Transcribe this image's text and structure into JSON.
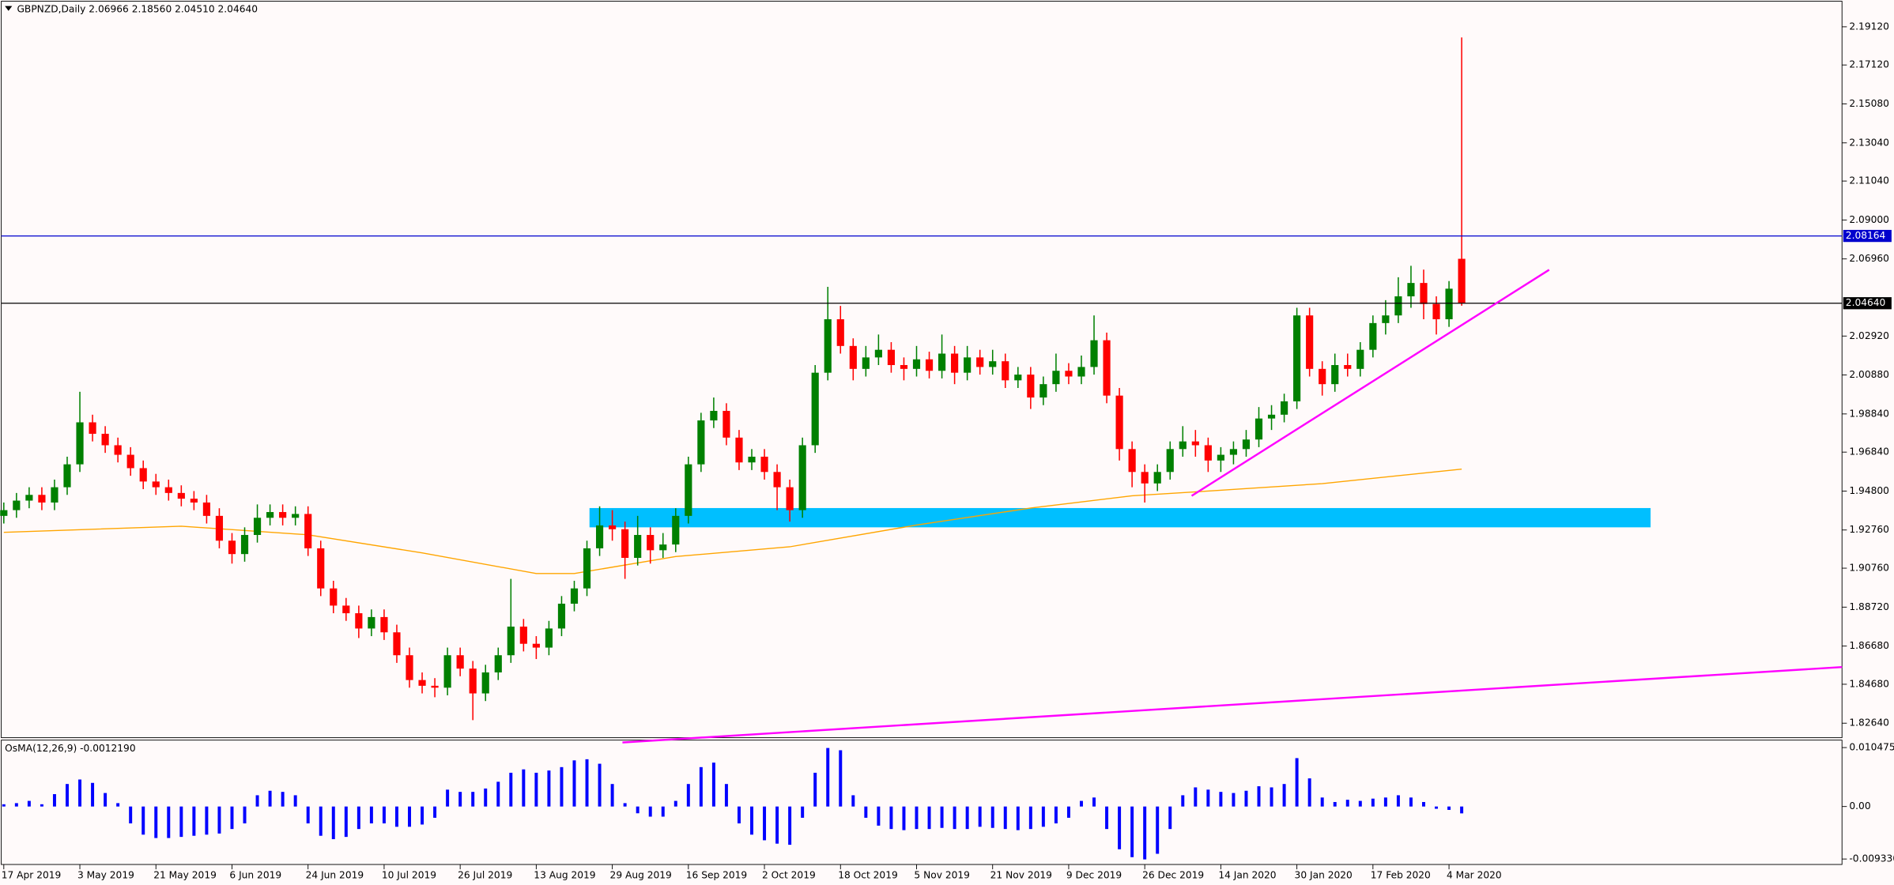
{
  "chart_data": [
    {
      "type": "candlestick",
      "title": "GBPNZD,Daily  2.06966 2.18560 2.04510 2.04640",
      "up_color": "#008000",
      "down_color": "#ff0000",
      "xlim": [
        -0.2,
        145
      ],
      "ylim": [
        1.8188,
        2.2046
      ],
      "xticks": [
        {
          "value": 0,
          "label": "17 Apr 2019"
        },
        {
          "value": 6,
          "label": "3 May 2019"
        },
        {
          "value": 12,
          "label": "21 May 2019"
        },
        {
          "value": 18,
          "label": "6 Jun 2019"
        },
        {
          "value": 24,
          "label": "24 Jun 2019"
        },
        {
          "value": 30,
          "label": "10 Jul 2019"
        },
        {
          "value": 36,
          "label": "26 Jul 2019"
        },
        {
          "value": 42,
          "label": "13 Aug 2019"
        },
        {
          "value": 48,
          "label": "29 Aug 2019"
        },
        {
          "value": 54,
          "label": "16 Sep 2019"
        },
        {
          "value": 60,
          "label": "2 Oct 2019"
        },
        {
          "value": 66,
          "label": "18 Oct 2019"
        },
        {
          "value": 72,
          "label": "5 Nov 2019"
        },
        {
          "value": 78,
          "label": "21 Nov 2019"
        },
        {
          "value": 84,
          "label": "9 Dec 2019"
        },
        {
          "value": 90,
          "label": "26 Dec 2019"
        },
        {
          "value": 96,
          "label": "14 Jan 2020"
        },
        {
          "value": 102,
          "label": "30 Jan 2020"
        },
        {
          "value": 108,
          "label": "17 Feb 2020"
        },
        {
          "value": 114,
          "label": "4 Mar 2020"
        }
      ],
      "yticks": [
        {
          "value": 2.1912,
          "label": "2.19120"
        },
        {
          "value": 2.1712,
          "label": "2.17120"
        },
        {
          "value": 2.1508,
          "label": "2.15080"
        },
        {
          "value": 2.1304,
          "label": "2.13040"
        },
        {
          "value": 2.1104,
          "label": "2.11040"
        },
        {
          "value": 2.09,
          "label": "2.09000"
        },
        {
          "value": 2.0696,
          "label": "2.06960"
        },
        {
          "value": 2.0292,
          "label": "2.02920"
        },
        {
          "value": 2.0088,
          "label": "2.00880"
        },
        {
          "value": 1.9884,
          "label": "1.98840"
        },
        {
          "value": 1.9684,
          "label": "1.96840"
        },
        {
          "value": 1.948,
          "label": "1.94800"
        },
        {
          "value": 1.9276,
          "label": "1.92760"
        },
        {
          "value": 1.9076,
          "label": "1.90760"
        },
        {
          "value": 1.8872,
          "label": "1.88720"
        },
        {
          "value": 1.8668,
          "label": "1.86680"
        },
        {
          "value": 1.8468,
          "label": "1.84680"
        },
        {
          "value": 1.8264,
          "label": "1.82640"
        }
      ],
      "open": [
        1.935,
        1.938,
        1.943,
        1.946,
        1.942,
        1.95,
        1.962,
        1.984,
        1.978,
        1.972,
        1.967,
        1.96,
        1.953,
        1.95,
        1.947,
        1.944,
        1.942,
        1.935,
        1.922,
        1.915,
        1.925,
        1.934,
        1.937,
        1.934,
        1.936,
        1.918,
        1.897,
        1.888,
        1.884,
        1.876,
        1.882,
        1.874,
        1.862,
        1.849,
        1.846,
        1.845,
        1.862,
        1.855,
        1.842,
        1.853,
        1.862,
        1.877,
        1.868,
        1.866,
        1.876,
        1.889,
        1.897,
        1.918,
        1.93,
        1.928,
        1.913,
        1.925,
        1.917,
        1.92,
        1.935,
        1.962,
        1.985,
        1.99,
        1.976,
        1.963,
        1.966,
        1.958,
        1.95,
        1.938,
        1.972,
        2.01,
        2.038,
        2.024,
        2.012,
        2.018,
        2.022,
        2.014,
        2.012,
        2.017,
        2.011,
        2.02,
        2.01,
        2.018,
        2.013,
        2.016,
        2.006,
        2.009,
        1.997,
        2.004,
        2.011,
        2.008,
        2.013,
        2.027,
        1.998,
        1.97,
        1.958,
        1.952,
        1.958,
        1.97,
        1.974,
        1.972,
        1.964,
        1.967,
        1.97,
        1.975,
        1.986,
        1.988,
        1.995,
        2.04,
        2.012,
        2.004,
        2.014,
        2.012,
        2.022,
        2.036,
        2.04,
        2.05,
        2.057,
        2.046,
        2.038,
        2.06966
      ],
      "high": [
        1.942,
        1.947,
        1.95,
        1.95,
        1.954,
        1.966,
        2.0,
        1.988,
        1.982,
        1.976,
        1.971,
        1.964,
        1.957,
        1.954,
        1.951,
        1.948,
        1.946,
        1.939,
        1.926,
        1.929,
        1.941,
        1.941,
        1.941,
        1.94,
        1.94,
        1.922,
        1.901,
        1.892,
        1.888,
        1.886,
        1.886,
        1.878,
        1.866,
        1.853,
        1.85,
        1.866,
        1.866,
        1.859,
        1.857,
        1.866,
        1.902,
        1.881,
        1.872,
        1.88,
        1.893,
        1.901,
        1.922,
        1.94,
        1.938,
        1.932,
        1.935,
        1.929,
        1.926,
        1.939,
        1.966,
        1.989,
        1.997,
        1.994,
        1.98,
        1.97,
        1.97,
        1.962,
        1.954,
        1.976,
        2.014,
        2.055,
        2.045,
        2.028,
        2.024,
        2.03,
        2.026,
        2.018,
        2.024,
        2.021,
        2.03,
        2.024,
        2.024,
        2.022,
        2.022,
        2.02,
        2.013,
        2.013,
        2.008,
        2.02,
        2.015,
        2.019,
        2.04,
        2.031,
        2.002,
        1.974,
        1.962,
        1.962,
        1.974,
        1.982,
        1.98,
        1.976,
        1.971,
        1.974,
        1.98,
        1.992,
        1.993,
        1.999,
        2.044,
        2.044,
        2.016,
        2.02,
        2.02,
        2.026,
        2.04,
        2.048,
        2.06,
        2.066,
        2.064,
        2.05,
        2.058,
        2.1856
      ],
      "low": [
        1.931,
        1.934,
        1.939,
        1.938,
        1.938,
        1.946,
        1.958,
        1.974,
        1.968,
        1.963,
        1.956,
        1.949,
        1.946,
        1.943,
        1.94,
        1.938,
        1.931,
        1.918,
        1.91,
        1.911,
        1.921,
        1.93,
        1.93,
        1.93,
        1.914,
        1.893,
        1.884,
        1.88,
        1.871,
        1.872,
        1.87,
        1.858,
        1.845,
        1.842,
        1.84,
        1.841,
        1.851,
        1.828,
        1.838,
        1.849,
        1.858,
        1.864,
        1.86,
        1.862,
        1.872,
        1.885,
        1.893,
        1.914,
        1.922,
        1.902,
        1.909,
        1.91,
        1.913,
        1.916,
        1.931,
        1.958,
        1.981,
        1.972,
        1.959,
        1.959,
        1.954,
        1.938,
        1.932,
        1.934,
        1.968,
        2.006,
        2.02,
        2.006,
        2.008,
        2.014,
        2.01,
        2.006,
        2.008,
        2.007,
        2.007,
        2.004,
        2.006,
        2.009,
        2.009,
        2.002,
        2.002,
        1.991,
        1.993,
        2.0,
        2.004,
        2.004,
        2.009,
        1.994,
        1.964,
        1.95,
        1.942,
        1.948,
        1.954,
        1.966,
        1.966,
        1.958,
        1.958,
        1.962,
        1.966,
        1.971,
        1.98,
        1.984,
        1.991,
        2.008,
        1.998,
        2.0,
        2.008,
        2.008,
        2.018,
        2.03,
        2.036,
        2.044,
        2.038,
        2.03,
        2.034,
        2.0451
      ],
      "close": [
        1.938,
        1.943,
        1.946,
        1.942,
        1.95,
        1.962,
        1.984,
        1.978,
        1.972,
        1.967,
        1.96,
        1.953,
        1.95,
        1.947,
        1.944,
        1.942,
        1.935,
        1.922,
        1.915,
        1.925,
        1.934,
        1.937,
        1.934,
        1.936,
        1.918,
        1.897,
        1.888,
        1.884,
        1.876,
        1.882,
        1.874,
        1.862,
        1.849,
        1.846,
        1.845,
        1.862,
        1.855,
        1.842,
        1.853,
        1.862,
        1.877,
        1.868,
        1.866,
        1.876,
        1.889,
        1.897,
        1.918,
        1.93,
        1.928,
        1.913,
        1.925,
        1.917,
        1.92,
        1.935,
        1.962,
        1.985,
        1.99,
        1.976,
        1.963,
        1.966,
        1.958,
        1.95,
        1.938,
        1.972,
        2.01,
        2.038,
        2.024,
        2.012,
        2.018,
        2.022,
        2.014,
        2.012,
        2.017,
        2.011,
        2.02,
        2.01,
        2.018,
        2.013,
        2.016,
        2.006,
        2.009,
        1.997,
        2.004,
        2.011,
        2.008,
        2.013,
        2.027,
        1.998,
        1.97,
        1.958,
        1.952,
        1.958,
        1.97,
        1.974,
        1.972,
        1.964,
        1.967,
        1.97,
        1.975,
        1.986,
        1.988,
        1.995,
        2.04,
        2.012,
        2.004,
        2.014,
        2.012,
        2.022,
        2.036,
        2.04,
        2.05,
        2.057,
        2.046,
        2.038,
        2.054,
        2.0464
      ],
      "moving_average": {
        "color": "#ffa500",
        "x": [
          0,
          14,
          24,
          33,
          42,
          45,
          53,
          62,
          72,
          81,
          89,
          95,
          104,
          115
        ],
        "values": [
          1.9264,
          1.9296,
          1.9251,
          1.9156,
          1.9048,
          1.9048,
          1.9137,
          1.9188,
          1.9302,
          1.9391,
          1.9455,
          1.948,
          1.9519,
          1.9595
        ]
      },
      "zone": {
        "color": "#00bfff",
        "x": [
          46.2,
          129.9
        ],
        "y": [
          1.929,
          1.9391
        ]
      },
      "hlines": [
        {
          "value": 2.08164,
          "label": "2.08164",
          "color": "#0000cd"
        },
        {
          "value": 2.0464,
          "label": "2.04640",
          "color": "#000000"
        }
      ],
      "trendlines": [
        {
          "color": "#ff00ff",
          "x": [
            93.7,
            121.9
          ],
          "y": [
            1.9455,
            2.0639
          ]
        },
        {
          "color": "#ff00ff",
          "x": [
            48.8,
            145
          ],
          "y": [
            1.8163,
            1.8558
          ]
        }
      ]
    },
    {
      "type": "bar",
      "title": "OsMA(12,26,9) -0.0012190",
      "color": "#0000ff",
      "xlim": [
        -0.2,
        145
      ],
      "ylim": [
        -0.0103,
        0.0118
      ],
      "yticks": [
        0.0104752,
        {
          "value": 0,
          "label": "0.00"
        },
        -0.0093305
      ],
      "values": [
        0.0004,
        0.0006,
        0.001,
        0.0004,
        0.0022,
        0.004,
        0.0048,
        0.0042,
        0.0024,
        0.0006,
        -0.003,
        -0.005,
        -0.0056,
        -0.0056,
        -0.0054,
        -0.0052,
        -0.005,
        -0.0048,
        -0.004,
        -0.003,
        0.002,
        0.0028,
        0.0026,
        0.002,
        -0.003,
        -0.0052,
        -0.0058,
        -0.0054,
        -0.004,
        -0.003,
        -0.003,
        -0.0036,
        -0.0036,
        -0.0032,
        -0.002,
        0.003,
        0.0026,
        0.0026,
        0.0032,
        0.0044,
        0.006,
        0.0066,
        0.006,
        0.0064,
        0.007,
        0.0082,
        0.0084,
        0.0076,
        0.004,
        0.0006,
        -0.0012,
        -0.0018,
        -0.0018,
        0.001,
        0.004,
        0.007,
        0.0078,
        0.004,
        -0.003,
        -0.005,
        -0.006,
        -0.0066,
        -0.0068,
        -0.002,
        0.006,
        0.0104,
        0.01,
        0.002,
        -0.002,
        -0.0034,
        -0.004,
        -0.0042,
        -0.004,
        -0.004,
        -0.0038,
        -0.004,
        -0.004,
        -0.0036,
        -0.0038,
        -0.004,
        -0.0042,
        -0.004,
        -0.0036,
        -0.003,
        -0.002,
        0.001,
        0.0016,
        -0.004,
        -0.0076,
        -0.009,
        -0.0094,
        -0.0084,
        -0.004,
        0.002,
        0.0034,
        0.003,
        0.0026,
        0.0024,
        0.0028,
        0.0036,
        0.0034,
        0.004,
        0.0086,
        0.005,
        0.0016,
        0.0008,
        0.0012,
        0.001,
        0.0014,
        0.0016,
        0.002,
        0.0016,
        0.0008,
        -0.0004,
        -0.0006,
        -0.001219
      ]
    }
  ]
}
